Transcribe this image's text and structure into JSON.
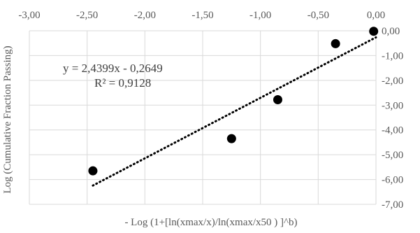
{
  "chart_data": {
    "type": "scatter",
    "title": "",
    "xlabel": "- Log (1+[ln(xmax/x)/ln(xmax/x50 ) ]^b)",
    "ylabel": "Log (Cumulative Fraction Passing)",
    "xlim": [
      -3.0,
      0.0
    ],
    "ylim": [
      -7.0,
      0.0
    ],
    "x_axis_position": "top",
    "y_axis_position": "right",
    "x_ticks": [
      -3.0,
      -2.5,
      -2.0,
      -1.5,
      -1.0,
      -0.5,
      0.0
    ],
    "x_tick_labels": [
      "-3,00",
      "-2,50",
      "-2,00",
      "-1,50",
      "-1,00",
      "-0,50",
      "0,00"
    ],
    "y_ticks": [
      0.0,
      -1.0,
      -2.0,
      -3.0,
      -4.0,
      -5.0,
      -6.0,
      -7.0
    ],
    "y_tick_labels": [
      "0,00",
      "-1,00",
      "-2,00",
      "-3,00",
      "-4,00",
      "-5,00",
      "-6,00",
      "-7,00"
    ],
    "grid": true,
    "series": [
      {
        "x": [
          -2.45,
          -1.25,
          -0.85,
          -0.35,
          -0.02
        ],
        "y": [
          -5.65,
          -4.35,
          -2.78,
          -0.52,
          -0.02
        ],
        "color": "#000000",
        "marker": "circle"
      }
    ],
    "trendline": {
      "style": "dotted",
      "color": "#000000",
      "slope": 2.4399,
      "intercept": -0.2649,
      "x_range": [
        -2.45,
        0.0
      ],
      "equation_label": "y = 2,4399x - 0,2649",
      "r2_label": "R² = 0,9128"
    }
  }
}
